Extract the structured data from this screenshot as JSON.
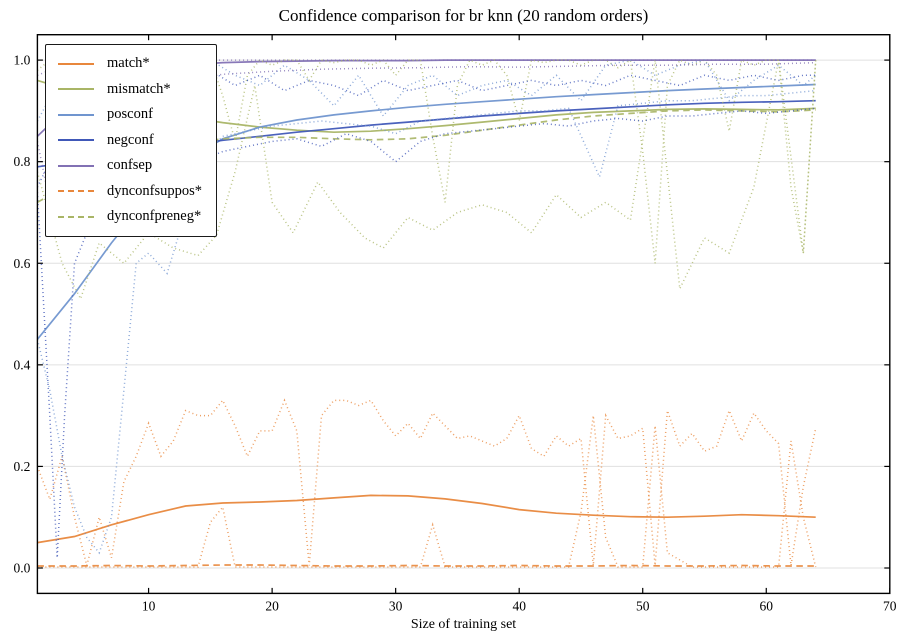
{
  "chart_data": {
    "type": "line",
    "title": "Confidence comparison for br knn (20 random orders)",
    "xlabel": "Size of training set",
    "ylabel": "",
    "xlim": [
      1,
      70
    ],
    "ylim": [
      -0.05,
      1.05
    ],
    "x_ticks": [
      "10",
      "20",
      "30",
      "40",
      "50",
      "60",
      "70"
    ],
    "y_ticks": [
      "0.0",
      "0.2",
      "0.4",
      "0.6",
      "0.8",
      "1.0"
    ],
    "grid": "horizontal, light gray, at y major ticks",
    "tick_style": "inward ticks on all four spines",
    "colors": {
      "orange": "#e8873c",
      "olive": "#a9b566",
      "lightblue": "#7095cf",
      "darkblue": "#4058b8",
      "purple": "#8271b4",
      "grid": "#e0e0e0",
      "spine": "#000000"
    },
    "legend": {
      "position": "upper left",
      "items": [
        {
          "label": "match*",
          "color": "#e8873c",
          "style": "solid"
        },
        {
          "label": "mismatch*",
          "color": "#a9b566",
          "style": "solid"
        },
        {
          "label": "posconf",
          "color": "#7095cf",
          "style": "solid"
        },
        {
          "label": "negconf",
          "color": "#4058b8",
          "style": "solid"
        },
        {
          "label": "confsep",
          "color": "#8271b4",
          "style": "solid"
        },
        {
          "label": "dynconfsuppos*",
          "color": "#e8873c",
          "style": "dashed"
        },
        {
          "label": "dynconfpreneg*",
          "color": "#a9b566",
          "style": "dashed"
        }
      ]
    },
    "series": [
      {
        "name": "match-mean",
        "color": "#e8873c",
        "style": "solid",
        "x": [
          1,
          4,
          7,
          10,
          13,
          16,
          19,
          22,
          25,
          28,
          31,
          34,
          37,
          40,
          43,
          46,
          49,
          52,
          55,
          58,
          61,
          64
        ],
        "y": [
          0.05,
          0.062,
          0.085,
          0.105,
          0.122,
          0.128,
          0.13,
          0.133,
          0.138,
          0.143,
          0.142,
          0.136,
          0.127,
          0.115,
          0.108,
          0.104,
          0.101,
          0.1,
          0.102,
          0.105,
          0.103,
          0.1
        ]
      },
      {
        "name": "mismatch-mean",
        "color": "#a9b566",
        "style": "solid",
        "x": [
          1,
          4,
          7,
          10,
          13,
          16,
          19,
          22,
          25,
          28,
          31,
          34,
          37,
          40,
          43,
          46,
          49,
          52,
          55,
          58,
          61,
          64
        ],
        "y": [
          0.96,
          0.938,
          0.917,
          0.9,
          0.888,
          0.877,
          0.868,
          0.862,
          0.858,
          0.86,
          0.865,
          0.871,
          0.878,
          0.885,
          0.892,
          0.897,
          0.9,
          0.903,
          0.904,
          0.903,
          0.902,
          0.905
        ]
      },
      {
        "name": "posconf-mean",
        "color": "#7095cf",
        "style": "solid",
        "x": [
          1,
          4,
          7,
          10,
          13,
          16,
          19,
          22,
          25,
          28,
          31,
          34,
          37,
          40,
          43,
          46,
          49,
          52,
          55,
          58,
          61,
          64
        ],
        "y": [
          0.45,
          0.54,
          0.64,
          0.73,
          0.8,
          0.845,
          0.868,
          0.882,
          0.892,
          0.9,
          0.907,
          0.913,
          0.918,
          0.923,
          0.928,
          0.932,
          0.936,
          0.94,
          0.943,
          0.946,
          0.949,
          0.952
        ]
      },
      {
        "name": "negconf-mean",
        "color": "#4058b8",
        "style": "solid",
        "x": [
          1,
          4,
          7,
          10,
          13,
          16,
          19,
          22,
          25,
          28,
          31,
          34,
          37,
          40,
          43,
          46,
          49,
          52,
          55,
          58,
          61,
          64
        ],
        "y": [
          0.79,
          0.8,
          0.812,
          0.822,
          0.832,
          0.842,
          0.85,
          0.858,
          0.865,
          0.872,
          0.878,
          0.884,
          0.89,
          0.895,
          0.9,
          0.904,
          0.908,
          0.912,
          0.915,
          0.917,
          0.918,
          0.92
        ]
      },
      {
        "name": "confsep-mean",
        "color": "#8271b4",
        "style": "solid",
        "x": [
          1,
          4,
          7,
          10,
          13,
          16,
          19,
          22,
          25,
          28,
          31,
          34,
          37,
          40,
          43,
          46,
          49,
          52,
          55,
          58,
          61,
          64
        ],
        "y": [
          0.85,
          0.92,
          0.96,
          0.98,
          0.99,
          0.995,
          0.997,
          0.998,
          0.999,
          0.999,
          0.999,
          1.0,
          1.0,
          1.0,
          1.0,
          1.0,
          1.0,
          1.0,
          1.0,
          1.0,
          1.0,
          1.0
        ]
      },
      {
        "name": "dynconfsuppos-mean",
        "color": "#e8873c",
        "style": "dashed",
        "x": [
          1,
          4,
          7,
          10,
          13,
          16,
          19,
          22,
          25,
          28,
          31,
          34,
          37,
          40,
          43,
          46,
          49,
          52,
          55,
          58,
          61,
          64
        ],
        "y": [
          0.004,
          0.004,
          0.005,
          0.004,
          0.005,
          0.006,
          0.006,
          0.005,
          0.004,
          0.004,
          0.005,
          0.004,
          0.004,
          0.005,
          0.004,
          0.004,
          0.005,
          0.004,
          0.004,
          0.005,
          0.004,
          0.004
        ]
      },
      {
        "name": "dynconfpreneg-mean",
        "color": "#a9b566",
        "style": "dashed",
        "x": [
          1,
          4,
          7,
          10,
          13,
          16,
          19,
          22,
          25,
          28,
          31,
          34,
          37,
          40,
          43,
          46,
          49,
          52,
          55,
          58,
          61,
          64
        ],
        "y": [
          0.72,
          0.76,
          0.795,
          0.82,
          0.835,
          0.845,
          0.848,
          0.848,
          0.845,
          0.843,
          0.845,
          0.852,
          0.862,
          0.872,
          0.882,
          0.89,
          0.895,
          0.9,
          0.902,
          0.9,
          0.898,
          0.902
        ]
      },
      {
        "name": "match-max",
        "color": "#e8873c",
        "style": "dotted",
        "x": [
          1,
          2,
          3,
          4,
          5,
          6,
          7,
          8,
          9,
          10,
          11,
          12,
          13,
          14,
          15,
          16,
          17,
          18,
          19,
          20,
          21,
          22,
          23,
          24,
          25,
          26,
          27,
          28,
          29,
          30,
          31,
          32,
          33,
          34,
          35,
          36,
          37,
          38,
          39,
          40,
          41,
          42,
          43,
          44,
          45,
          46,
          47,
          48,
          49,
          50,
          51,
          52,
          53,
          54,
          55,
          56,
          57,
          58,
          59,
          60,
          61,
          62,
          63,
          64
        ],
        "y": [
          0.2,
          0.135,
          0.22,
          0.1,
          0.005,
          0.1,
          0.02,
          0.17,
          0.22,
          0.285,
          0.22,
          0.25,
          0.31,
          0.3,
          0.3,
          0.33,
          0.28,
          0.22,
          0.27,
          0.27,
          0.33,
          0.27,
          0.005,
          0.3,
          0.33,
          0.33,
          0.32,
          0.33,
          0.29,
          0.26,
          0.285,
          0.255,
          0.305,
          0.28,
          0.255,
          0.26,
          0.25,
          0.24,
          0.255,
          0.3,
          0.235,
          0.22,
          0.26,
          0.24,
          0.255,
          0.005,
          0.3,
          0.255,
          0.26,
          0.275,
          0.005,
          0.31,
          0.24,
          0.265,
          0.23,
          0.24,
          0.31,
          0.25,
          0.305,
          0.27,
          0.245,
          0.005,
          0.16,
          0.275
        ]
      },
      {
        "name": "match-min",
        "color": "#e8873c",
        "style": "dotted",
        "x": [
          1,
          4,
          8,
          12,
          14,
          15,
          16,
          17,
          20,
          24,
          28,
          32,
          33,
          34,
          36,
          40,
          44,
          45,
          46,
          47,
          48,
          50,
          51,
          52,
          54,
          58,
          60,
          61,
          62,
          63,
          64
        ],
        "y": [
          0.002,
          0.002,
          0.002,
          0.002,
          0.002,
          0.09,
          0.12,
          0.002,
          0.002,
          0.002,
          0.002,
          0.002,
          0.085,
          0.002,
          0.002,
          0.002,
          0.002,
          0.11,
          0.3,
          0.06,
          0.002,
          0.002,
          0.28,
          0.03,
          0.002,
          0.002,
          0.002,
          0.002,
          0.25,
          0.1,
          0.002
        ]
      },
      {
        "name": "mismatch-max",
        "color": "#a9b566",
        "style": "dotted",
        "x": [
          1,
          2,
          3,
          4,
          5,
          6,
          7,
          8,
          9,
          10,
          11,
          12,
          13,
          14,
          15,
          16,
          17,
          18,
          19,
          20,
          21,
          22,
          23,
          24,
          25,
          26,
          27,
          28,
          29,
          30,
          31,
          32,
          33,
          34,
          35,
          36,
          37,
          38,
          39,
          40,
          41,
          42,
          43,
          44,
          45,
          46,
          47,
          48,
          49,
          50,
          51,
          52,
          53,
          54,
          55,
          56,
          57,
          58,
          59,
          60,
          61,
          62,
          63,
          64
        ],
        "y": [
          0.98,
          1.0,
          0.97,
          1.0,
          0.99,
          1.0,
          1.0,
          0.985,
          1.0,
          1.0,
          0.99,
          1.0,
          1.0,
          0.99,
          1.0,
          0.93,
          0.84,
          0.97,
          1.0,
          0.99,
          1.0,
          1.0,
          0.96,
          1.0,
          0.995,
          1.0,
          1.0,
          0.99,
          1.0,
          0.97,
          1.0,
          1.0,
          0.85,
          0.72,
          0.95,
          1.0,
          0.99,
          1.0,
          0.97,
          0.88,
          1.0,
          0.995,
          1.0,
          1.0,
          0.99,
          1.0,
          1.0,
          0.985,
          1.0,
          0.82,
          0.6,
          0.95,
          1.0,
          0.99,
          1.0,
          0.97,
          0.86,
          1.0,
          0.99,
          1.0,
          1.0,
          0.75,
          0.62,
          1.0
        ]
      },
      {
        "name": "mismatch-min",
        "color": "#a9b566",
        "style": "dotted",
        "x": [
          1,
          3,
          4.5,
          6,
          8,
          10,
          12,
          14,
          15.5,
          17,
          18.6,
          20,
          21.7,
          23.7,
          25.5,
          27.5,
          29,
          31,
          33,
          35,
          37,
          39,
          41,
          43,
          45,
          47,
          49,
          51,
          53,
          55,
          57,
          59,
          61,
          63,
          64
        ],
        "y": [
          0.78,
          0.6,
          0.53,
          0.64,
          0.6,
          0.66,
          0.63,
          0.615,
          0.655,
          0.78,
          0.95,
          0.72,
          0.66,
          0.76,
          0.7,
          0.65,
          0.63,
          0.69,
          0.665,
          0.7,
          0.715,
          0.7,
          0.66,
          0.735,
          0.69,
          0.72,
          0.685,
          1.0,
          0.55,
          0.65,
          0.62,
          0.75,
          1.0,
          0.62,
          1.0
        ]
      },
      {
        "name": "posconf-max",
        "color": "#7095cf",
        "style": "dotted",
        "x": [
          1,
          3,
          5,
          7,
          9,
          11,
          13,
          15,
          17,
          19,
          21,
          23,
          25,
          27,
          29,
          31,
          33,
          35,
          37,
          39,
          41,
          43,
          45,
          47,
          49,
          51,
          53,
          55,
          57,
          59,
          61,
          63,
          64
        ],
        "y": [
          0.88,
          0.97,
          0.92,
          0.99,
          1.0,
          0.96,
          0.99,
          1.0,
          0.97,
          0.95,
          0.99,
          0.96,
          0.91,
          0.97,
          0.89,
          0.95,
          0.97,
          0.93,
          0.95,
          0.96,
          0.93,
          0.97,
          0.92,
          0.99,
          1.0,
          0.97,
          0.99,
          1.0,
          0.92,
          0.96,
          0.99,
          0.95,
          0.97
        ]
      },
      {
        "name": "posconf-min",
        "color": "#7095cf",
        "style": "dotted",
        "x": [
          1,
          2,
          3,
          4,
          5,
          6,
          7,
          8,
          9,
          10,
          11.5,
          13,
          14,
          16,
          18,
          20,
          22,
          24,
          26,
          28,
          30,
          32,
          34,
          36,
          38,
          40,
          42,
          44,
          46.5,
          48,
          50,
          52,
          54,
          56,
          58,
          60,
          62,
          64
        ],
        "y": [
          0.45,
          0.35,
          0.22,
          0.12,
          0.06,
          0.03,
          0.1,
          0.35,
          0.6,
          0.62,
          0.58,
          0.7,
          0.8,
          0.85,
          0.86,
          0.87,
          0.875,
          0.88,
          0.875,
          0.87,
          0.855,
          0.88,
          0.885,
          0.89,
          0.895,
          0.9,
          0.9,
          0.905,
          0.77,
          0.91,
          0.915,
          0.92,
          0.92,
          0.925,
          0.93,
          0.93,
          0.935,
          0.94
        ]
      },
      {
        "name": "negconf-max",
        "color": "#4058b8",
        "style": "dotted",
        "x": [
          1,
          3,
          5,
          7,
          9,
          11,
          13,
          15,
          17,
          19,
          21,
          23,
          25,
          27,
          29,
          31,
          33,
          35,
          37,
          39,
          41,
          43,
          45,
          47,
          49,
          51,
          53,
          55,
          57,
          59,
          61,
          63,
          64
        ],
        "y": [
          0.75,
          0.85,
          0.92,
          0.95,
          0.97,
          0.94,
          0.96,
          0.98,
          0.95,
          0.97,
          0.94,
          0.96,
          0.95,
          0.93,
          0.96,
          0.94,
          0.95,
          0.96,
          0.94,
          0.95,
          0.96,
          0.95,
          0.96,
          0.95,
          0.97,
          0.96,
          0.95,
          0.97,
          0.96,
          0.97,
          0.96,
          0.97,
          0.97
        ]
      },
      {
        "name": "negconf-min",
        "color": "#4058b8",
        "style": "dotted",
        "x": [
          1,
          2,
          2.6,
          3.2,
          4,
          6,
          8,
          10,
          12,
          14,
          16,
          18,
          20,
          22,
          24,
          26,
          28,
          30,
          32,
          34,
          36,
          38,
          40,
          42,
          44,
          46,
          48,
          50,
          52,
          54,
          56,
          58,
          60,
          62,
          64
        ],
        "y": [
          0.74,
          0.3,
          0.02,
          0.3,
          0.6,
          0.72,
          0.78,
          0.76,
          0.78,
          0.8,
          0.82,
          0.83,
          0.84,
          0.845,
          0.83,
          0.855,
          0.84,
          0.8,
          0.84,
          0.855,
          0.86,
          0.865,
          0.87,
          0.875,
          0.87,
          0.88,
          0.885,
          0.88,
          0.89,
          0.89,
          0.895,
          0.9,
          0.895,
          0.9,
          0.905
        ]
      },
      {
        "name": "confsep-max",
        "color": "#8271b4",
        "style": "dotted",
        "x": [
          1,
          3,
          6,
          10,
          16,
          24,
          32,
          40,
          48,
          56,
          64
        ],
        "y": [
          0.97,
          0.99,
          1.0,
          1.0,
          1.0,
          1.0,
          1.0,
          1.0,
          1.0,
          1.0,
          1.0
        ]
      },
      {
        "name": "confsep-min",
        "color": "#8271b4",
        "style": "dotted",
        "x": [
          1,
          2.5,
          4,
          6,
          8,
          10,
          13,
          16,
          20,
          24,
          28,
          32,
          36,
          40,
          44,
          48,
          52,
          56,
          60,
          64
        ],
        "y": [
          0.84,
          0.66,
          0.82,
          0.88,
          0.92,
          0.94,
          0.96,
          0.972,
          0.978,
          0.982,
          0.984,
          0.985,
          0.987,
          0.986,
          0.988,
          0.99,
          0.99,
          0.992,
          0.992,
          0.995
        ]
      }
    ]
  }
}
